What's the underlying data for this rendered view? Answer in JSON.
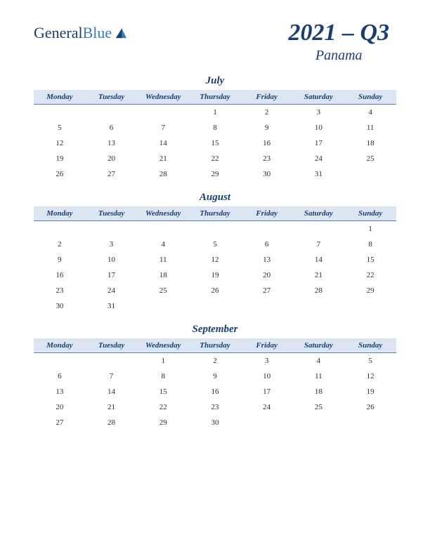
{
  "logo": {
    "general": "General",
    "blue": "Blue"
  },
  "header": {
    "year_quarter": "2021 – Q3",
    "country": "Panama"
  },
  "day_headers": [
    "Monday",
    "Tuesday",
    "Wednesday",
    "Thursday",
    "Friday",
    "Saturday",
    "Sunday"
  ],
  "colors": {
    "header_bg": "#dce6f2",
    "header_border": "#5a7fa8",
    "title_color": "#1a3e6e",
    "logo_blue": "#3b7bb8"
  },
  "months": [
    {
      "name": "July",
      "weeks": [
        [
          "",
          "",
          "",
          "1",
          "2",
          "3",
          "4"
        ],
        [
          "5",
          "6",
          "7",
          "8",
          "9",
          "10",
          "11"
        ],
        [
          "12",
          "13",
          "14",
          "15",
          "16",
          "17",
          "18"
        ],
        [
          "19",
          "20",
          "21",
          "22",
          "23",
          "24",
          "25"
        ],
        [
          "26",
          "27",
          "28",
          "29",
          "30",
          "31",
          ""
        ]
      ]
    },
    {
      "name": "August",
      "weeks": [
        [
          "",
          "",
          "",
          "",
          "",
          "",
          "1"
        ],
        [
          "2",
          "3",
          "4",
          "5",
          "6",
          "7",
          "8"
        ],
        [
          "9",
          "10",
          "11",
          "12",
          "13",
          "14",
          "15"
        ],
        [
          "16",
          "17",
          "18",
          "19",
          "20",
          "21",
          "22"
        ],
        [
          "23",
          "24",
          "25",
          "26",
          "27",
          "28",
          "29"
        ],
        [
          "30",
          "31",
          "",
          "",
          "",
          "",
          ""
        ]
      ]
    },
    {
      "name": "September",
      "weeks": [
        [
          "",
          "",
          "1",
          "2",
          "3",
          "4",
          "5"
        ],
        [
          "6",
          "7",
          "8",
          "9",
          "10",
          "11",
          "12"
        ],
        [
          "13",
          "14",
          "15",
          "16",
          "17",
          "18",
          "19"
        ],
        [
          "20",
          "21",
          "22",
          "23",
          "24",
          "25",
          "26"
        ],
        [
          "27",
          "28",
          "29",
          "30",
          "",
          "",
          ""
        ]
      ]
    }
  ]
}
